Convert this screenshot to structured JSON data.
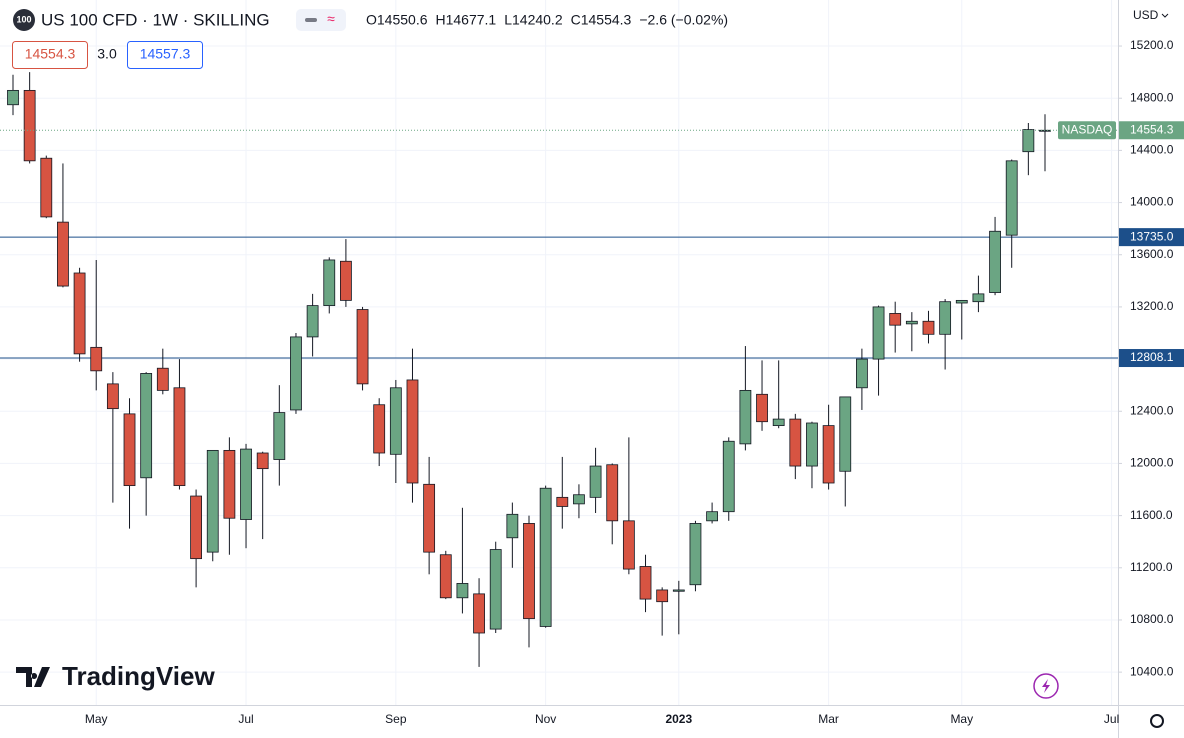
{
  "header": {
    "badge": "100",
    "title": "US 100 CFD · 1W · SKILLING",
    "ohlc": [
      "O14550.6",
      "H14677.1",
      "L14240.2",
      "C14554.3",
      "−2.6 (−0.02%)"
    ],
    "bid": "14554.3",
    "spread": "3.0",
    "ask": "14557.3",
    "currency": "USD",
    "brand": "TradingView"
  },
  "chart_data": {
    "type": "candlestick",
    "categories": [
      null,
      null,
      null,
      null,
      null,
      "May",
      null,
      null,
      null,
      null,
      null,
      null,
      null,
      null,
      "Jul",
      null,
      null,
      null,
      null,
      null,
      null,
      null,
      null,
      "Sep",
      null,
      null,
      null,
      null,
      null,
      null,
      null,
      null,
      "Nov",
      null,
      null,
      null,
      null,
      null,
      null,
      null,
      "2023",
      null,
      null,
      null,
      null,
      null,
      null,
      null,
      null,
      "Mar",
      null,
      null,
      null,
      null,
      null,
      null,
      null,
      "May",
      null,
      null,
      null,
      null,
      null,
      null,
      null,
      null,
      "Jul"
    ],
    "series": [
      {
        "name": "NASDAQ",
        "up_color": "#6ba583",
        "down_color": "#d75442",
        "open": [
          14750,
          14860,
          14340,
          13850,
          13460,
          12890,
          12610,
          12380,
          11890,
          12730,
          12580,
          11750,
          11320,
          12100,
          11570,
          12080,
          12030,
          12410,
          12970,
          13210,
          13550,
          13180,
          12450,
          12070,
          12640,
          11840,
          11300,
          10970,
          11000,
          10730,
          11430,
          11540,
          10750,
          11740,
          11690,
          11740,
          11990,
          11560,
          11210,
          11030,
          11020,
          11070,
          11560,
          11630,
          12150,
          12530,
          12290,
          12340,
          11980,
          12290,
          11940,
          12580,
          12800,
          13150,
          13070,
          13090,
          12990,
          13230,
          13240,
          13310,
          13750,
          14390,
          14550.6,
          null,
          null,
          null,
          null
        ],
        "high": [
          14980,
          15000,
          14360,
          14300,
          13500,
          13560,
          12700,
          12500,
          12700,
          12880,
          12800,
          11800,
          12100,
          12200,
          12150,
          12090,
          12600,
          13000,
          13300,
          13580,
          13720,
          13200,
          12500,
          12640,
          12880,
          12050,
          11330,
          11660,
          11120,
          11400,
          11700,
          11600,
          11830,
          12050,
          11840,
          12120,
          12000,
          12200,
          11300,
          11050,
          11100,
          11560,
          11700,
          12200,
          12900,
          12790,
          12790,
          12380,
          12320,
          12450,
          12510,
          12880,
          13210,
          13240,
          13160,
          13170,
          13260,
          13250,
          13440,
          13890,
          14330,
          14610,
          14677.1,
          null,
          null,
          null,
          null
        ],
        "low": [
          14670,
          14300,
          13880,
          13350,
          12780,
          12560,
          11700,
          11500,
          11600,
          12530,
          11800,
          11050,
          11250,
          11300,
          11350,
          11420,
          11830,
          12380,
          12820,
          13150,
          13200,
          12560,
          11980,
          11850,
          11700,
          11150,
          10960,
          10850,
          10440,
          10700,
          11200,
          10590,
          10740,
          11500,
          11580,
          11620,
          11380,
          11150,
          10860,
          10680,
          10690,
          11020,
          11540,
          11560,
          12100,
          12250,
          12270,
          11880,
          11810,
          11800,
          11670,
          12410,
          12520,
          12850,
          12860,
          12920,
          12720,
          12950,
          13160,
          13290,
          13500,
          14210,
          14240.2,
          null,
          null,
          null,
          null
        ],
        "close": [
          14860,
          14320,
          13890,
          13360,
          12840,
          12710,
          12420,
          11830,
          12690,
          12560,
          11830,
          11270,
          12100,
          11580,
          12110,
          11960,
          12390,
          12970,
          13210,
          13560,
          13250,
          12610,
          12080,
          12580,
          11850,
          11320,
          10970,
          11080,
          10700,
          11340,
          11610,
          10810,
          11810,
          11670,
          11760,
          11980,
          11560,
          11190,
          10960,
          10940,
          11030,
          11540,
          11630,
          12170,
          12560,
          12320,
          12340,
          11980,
          12310,
          11850,
          12510,
          12800,
          13200,
          13060,
          13090,
          12990,
          13240,
          13250,
          13300,
          13780,
          14320,
          14560,
          14554.3,
          null,
          null,
          null,
          null
        ]
      }
    ],
    "ylim": [
      10148,
      15553
    ],
    "yticks": [
      {
        "value": 10400,
        "label": "10400.0"
      },
      {
        "value": 10800,
        "label": "10800.0"
      },
      {
        "value": 11200,
        "label": "11200.0"
      },
      {
        "value": 11600,
        "label": "11600.0"
      },
      {
        "value": 12000,
        "label": "12000.0"
      },
      {
        "value": 12400,
        "label": "12400.0"
      },
      {
        "value": 12800,
        "label": "12800.0"
      },
      {
        "value": 13200,
        "label": "13200.0"
      },
      {
        "value": 13600,
        "label": "13600.0"
      },
      {
        "value": 14000,
        "label": "14000.0"
      },
      {
        "value": 14400,
        "label": "14400.0"
      },
      {
        "value": 14800,
        "label": "14800.0"
      },
      {
        "value": 15200,
        "label": "15200.0"
      }
    ],
    "levels": [
      {
        "value": 13735.0,
        "label": "13735.0",
        "color": "#1c4f8a"
      },
      {
        "value": 12808.1,
        "label": "12808.1",
        "color": "#1c4f8a"
      }
    ],
    "last": {
      "value": 14554.3,
      "name": "NASDAQ",
      "color": "#6ba583"
    },
    "grid": true
  }
}
